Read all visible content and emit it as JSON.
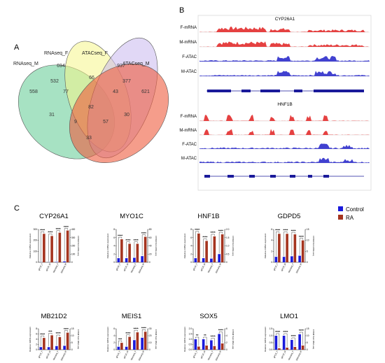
{
  "panels": {
    "a": "A",
    "b": "B",
    "c": "C"
  },
  "venn": {
    "sets": [
      "RNAseq_M",
      "RNAseq_F",
      "ATACseq_F",
      "ATACseq_M"
    ],
    "regions": [
      "558",
      "694",
      "937",
      "621",
      "532",
      "66",
      "377",
      "77",
      "43",
      "82",
      "31",
      "9",
      "57",
      "30",
      "33"
    ]
  },
  "tracks": {
    "genes": [
      {
        "name": "CYP26A1",
        "tracks": [
          "F-mRNA",
          "M-mRNA",
          "F-ATAC",
          "M-ATAC"
        ]
      },
      {
        "name": "HNF1B",
        "tracks": [
          "F-mRNA",
          "M-mRNA",
          "F-ATAC",
          "M-ATAC"
        ]
      }
    ]
  },
  "legend": {
    "control": {
      "label": "Control",
      "color": "#1a1adc"
    },
    "ra": {
      "label": "RA",
      "color": "#a5341f"
    }
  },
  "chart_data": {
    "type": "bar",
    "series_colors": {
      "Control": "#1a1adc",
      "RA": "#a5341f"
    },
    "left_axis_label": "Relative mRNA expression",
    "right_axis_label": "FPKM from RNA-seq",
    "categories": [
      "qPCR_F",
      "qPCR_M",
      "RNAseq_F",
      "RNAseq_M"
    ],
    "charts": [
      {
        "title": "CYP26A1",
        "control": [
          1,
          1,
          3,
          8
        ],
        "ra": [
          260,
          240,
          270,
          290
        ],
        "ylim": [
          0,
          300
        ],
        "yticks": [
          "0",
          "100",
          "200",
          "300"
        ],
        "rticks": [
          "0",
          "100",
          "200",
          "300",
          "400"
        ],
        "stars": [
          "****",
          "****",
          "****",
          "****"
        ]
      },
      {
        "title": "MYO1C",
        "control": [
          1,
          1,
          1.1,
          1.5
        ],
        "ra": [
          5.6,
          4.5,
          4.5,
          6.2
        ],
        "ylim": [
          0,
          8
        ],
        "yticks": [
          "0",
          "2",
          "4",
          "6",
          "8"
        ],
        "rticks": [
          "0",
          "20",
          "40",
          "60",
          "80"
        ],
        "stars": [
          "****",
          "****",
          "****",
          "****"
        ]
      },
      {
        "title": "HNF1B",
        "control": [
          1,
          1,
          0.9,
          2
        ],
        "ra": [
          7,
          5.2,
          6.3,
          6.8
        ],
        "ylim": [
          0,
          8
        ],
        "yticks": [
          "0",
          "2",
          "4",
          "6",
          "8"
        ],
        "rticks": [
          "0",
          "0.5",
          "1.0",
          "1.5",
          "2.0"
        ],
        "stars": [
          "****",
          "****",
          "****",
          "****"
        ]
      },
      {
        "title": "GDPD5",
        "control": [
          1,
          1,
          1.1,
          1.2
        ],
        "ra": [
          5.2,
          5.2,
          5.1,
          4
        ],
        "ylim": [
          0,
          6
        ],
        "yticks": [
          "0",
          "2",
          "4",
          "6"
        ],
        "rticks": [
          "0",
          "5",
          "10",
          "15"
        ],
        "stars": [
          "****",
          "****",
          "****",
          "****"
        ]
      },
      {
        "title": "MB21D2",
        "control": [
          1,
          1,
          1.4,
          1.5
        ],
        "ra": [
          4.5,
          5.5,
          4.8,
          6.5
        ],
        "ylim": [
          0,
          8
        ],
        "yticks": [
          "0",
          "2",
          "4",
          "6",
          "8"
        ],
        "rticks": [
          "0",
          "5",
          "10",
          "15"
        ],
        "stars": [
          "****",
          "***",
          "****",
          "****"
        ]
      },
      {
        "title": "MEIS1",
        "control": [
          1,
          1,
          3.2,
          4
        ],
        "ra": [
          2.3,
          4.3,
          5.8,
          6
        ],
        "ylim": [
          0,
          7
        ],
        "yticks": [
          "0",
          "2",
          "4",
          "6"
        ],
        "rticks": [
          "0",
          "10",
          "20",
          "30"
        ],
        "stars": [
          "***",
          "****",
          "****",
          "****"
        ]
      },
      {
        "title": "SOX5",
        "control": [
          1,
          1,
          0.9,
          1.5
        ],
        "ra": [
          0.3,
          0.4,
          0.35,
          0.6
        ],
        "ylim": [
          0,
          2
        ],
        "yticks": [
          "0.0",
          "0.5",
          "1.0",
          "1.5",
          "2.0"
        ],
        "rticks": [
          "0",
          "2",
          "4",
          "6"
        ],
        "stars": [
          "**",
          "**",
          "****",
          "****"
        ]
      },
      {
        "title": "LMO1",
        "control": [
          1,
          1,
          0.7,
          1.1
        ],
        "ra": [
          0.1,
          0.15,
          0.2,
          0.3
        ],
        "ylim": [
          0,
          1.5
        ],
        "yticks": [
          "0.0",
          "0.5",
          "1.0",
          "1.5"
        ],
        "rticks": [
          "0",
          "5",
          "10",
          "15"
        ],
        "stars": [
          "****",
          "****",
          "****",
          "****"
        ]
      }
    ]
  }
}
